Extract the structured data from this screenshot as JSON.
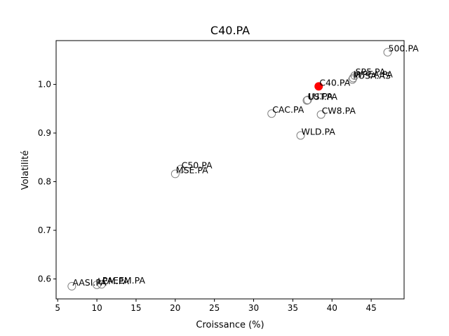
{
  "chart_data": {
    "type": "scatter",
    "title": "C40.PA",
    "xlabel": "Croissance (%)",
    "ylabel": "Volatilité",
    "xlim": [
      4.8,
      49.2
    ],
    "ylim": [
      0.559,
      1.09
    ],
    "xticks": [
      5,
      10,
      15,
      20,
      25,
      30,
      35,
      40,
      45
    ],
    "yticks": [
      0.6,
      0.7,
      0.8,
      0.9,
      1.0
    ],
    "ytick_labels": [
      "0.6",
      "0.7",
      "0.8",
      "0.9",
      "1.0"
    ],
    "grid": false,
    "highlight_color": "#ff0000",
    "marker_edge_color": "#808080",
    "points": [
      {
        "label": "C40.PA",
        "x": 38.3,
        "y": 0.996,
        "highlight": true
      },
      {
        "label": "500.PA",
        "x": 47.1,
        "y": 1.066
      },
      {
        "label": "SP5.PA",
        "x": 42.9,
        "y": 1.018
      },
      {
        "label": "WPEA.PA",
        "x": 42.7,
        "y": 1.013
      },
      {
        "label": "PUSA.AS",
        "x": 42.6,
        "y": 1.01
      },
      {
        "label": "LU.PA",
        "x": 36.9,
        "y": 0.968
      },
      {
        "label": "UST.PA",
        "x": 36.8,
        "y": 0.967
      },
      {
        "label": "CAC.PA",
        "x": 32.3,
        "y": 0.94
      },
      {
        "label": "CW8.PA",
        "x": 38.6,
        "y": 0.938
      },
      {
        "label": "WLD.PA",
        "x": 36.0,
        "y": 0.895
      },
      {
        "label": "C50.PA",
        "x": 20.7,
        "y": 0.826
      },
      {
        "label": "MSE.PA",
        "x": 20.0,
        "y": 0.816
      },
      {
        "label": "AASI.PA",
        "x": 6.8,
        "y": 0.585
      },
      {
        "label": "LEM.PA",
        "x": 10.0,
        "y": 0.588
      },
      {
        "label": "PAEEM.PA",
        "x": 10.6,
        "y": 0.589
      }
    ]
  }
}
